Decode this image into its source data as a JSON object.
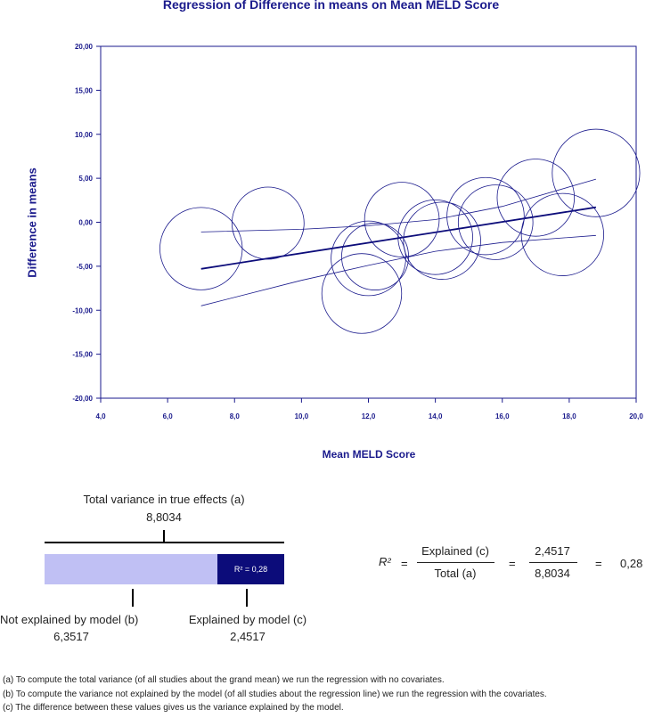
{
  "chart_data": {
    "type": "scatter",
    "title": "Regression of Difference in means on Mean MELD Score",
    "xlabel": "Mean MELD Score",
    "ylabel": "Difference in means",
    "xlim": [
      4,
      20
    ],
    "ylim": [
      -20,
      20
    ],
    "xticks": [
      "4,0",
      "6,0",
      "8,0",
      "10,0",
      "12,0",
      "14,0",
      "16,0",
      "18,0",
      "20,0"
    ],
    "yticks": [
      "20,00",
      "15,00",
      "10,00",
      "5,00",
      "0,00",
      "-5,00",
      "-10,00",
      "-15,00",
      "-20,00"
    ],
    "points": [
      {
        "x": 7.0,
        "y": -3.0,
        "r": 3.2
      },
      {
        "x": 9.0,
        "y": -0.1,
        "r": 2.8
      },
      {
        "x": 11.8,
        "y": -8.1,
        "r": 3.1
      },
      {
        "x": 12.0,
        "y": -4.1,
        "r": 2.9
      },
      {
        "x": 12.2,
        "y": -3.9,
        "r": 2.6
      },
      {
        "x": 13.0,
        "y": 0.3,
        "r": 2.9
      },
      {
        "x": 14.0,
        "y": -1.7,
        "r": 2.9
      },
      {
        "x": 14.2,
        "y": -2.1,
        "r": 3.0
      },
      {
        "x": 15.5,
        "y": 0.7,
        "r": 3.0
      },
      {
        "x": 15.8,
        "y": 0.0,
        "r": 2.9
      },
      {
        "x": 17.0,
        "y": 2.8,
        "r": 3.0
      },
      {
        "x": 17.8,
        "y": -1.4,
        "r": 3.2
      },
      {
        "x": 18.8,
        "y": 5.6,
        "r": 3.4
      }
    ],
    "regression_line": {
      "x": [
        7.0,
        18.8
      ],
      "y": [
        -5.3,
        1.7
      ]
    },
    "ci_upper": {
      "x": [
        7.0,
        10.0,
        12.0,
        14.0,
        16.0,
        18.8
      ],
      "y": [
        -1.1,
        -0.8,
        -0.4,
        0.3,
        1.8,
        4.9
      ]
    },
    "ci_lower": {
      "x": [
        7.0,
        10.0,
        12.0,
        14.0,
        16.0,
        18.8
      ],
      "y": [
        -9.5,
        -6.6,
        -4.9,
        -3.3,
        -2.3,
        -1.5
      ]
    }
  },
  "variance": {
    "total_label": "Total variance in true effects (a)",
    "total_value": "8,8034",
    "r2_badge": "R² = 0,28",
    "unexplained_label": "Not explained by model (b)",
    "unexplained_value": "6,3517",
    "explained_label": "Explained by model (c)",
    "explained_value": "2,4517",
    "unexplained_fraction": 0.72,
    "explained_fraction": 0.28,
    "color_unexplained": "#c0c0f4",
    "color_explained": "#0c0c7a"
  },
  "equation": {
    "lhs": "R²",
    "eq": "=",
    "num1": "Explained (c)",
    "den1": "Total (a)",
    "num2": "2,4517",
    "den2": "8,8034",
    "result": "0,28"
  },
  "notes": [
    "(a) To compute the total variance (of all studies about the grand mean) we run the regression with no covariates.",
    "(b) To compute the variance not explained by the model (of all studies about the regression line) we run the regression with the covariates.",
    "(c) The difference between these values gives us the variance explained by the model."
  ],
  "colors": {
    "accent": "#1a1a8c",
    "axis": "#1a1a8c",
    "point": "#1a1a8c"
  }
}
